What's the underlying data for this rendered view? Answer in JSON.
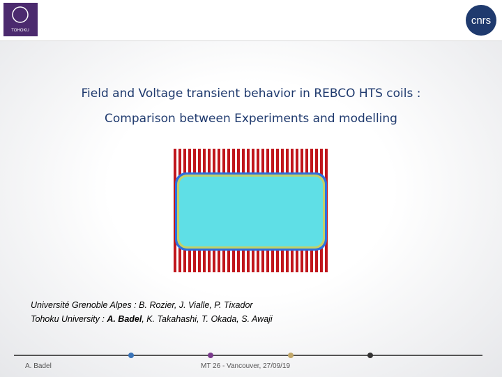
{
  "header": {
    "left_logo": "TOHOKU",
    "right_logo": "cnrs"
  },
  "title": {
    "line1": "Field and Voltage transient behavior in REBCO HTS coils :",
    "line2": "Comparison between Experiments and modelling"
  },
  "authors": {
    "line1": "Université Grenoble Alpes : B. Rozier, J. Vialle, P. Tixador",
    "line2": {
      "prefix": "Tohoku University : ",
      "bold": "A. Badel",
      "suffix": ", K. Takahashi, T. Okada, S. Awaji"
    }
  },
  "footer": {
    "left": "A. Badel",
    "center": "MT 26 - Vancouver, 27/09/19"
  }
}
